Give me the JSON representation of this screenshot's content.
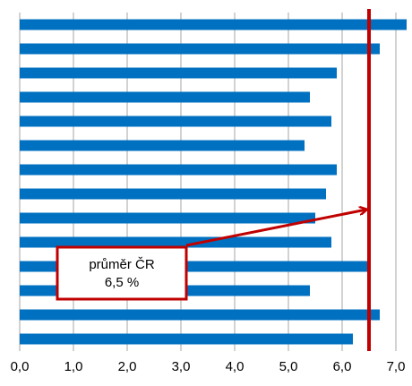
{
  "chart_data": {
    "type": "barh",
    "categories": [
      null,
      null,
      null,
      null,
      null,
      null,
      null,
      null,
      null,
      null,
      null,
      null,
      null,
      null
    ],
    "values": [
      7.2,
      6.7,
      5.9,
      5.4,
      5.8,
      5.3,
      5.9,
      5.7,
      5.5,
      5.8,
      6.5,
      5.4,
      6.7,
      6.2
    ],
    "color": "#0070c0",
    "xlim": [
      0,
      7.2
    ],
    "xticks": [
      {
        "value": 0,
        "label": "0,0"
      },
      {
        "value": 1,
        "label": "1,0"
      },
      {
        "value": 2,
        "label": "2,0"
      },
      {
        "value": 3,
        "label": "3,0"
      },
      {
        "value": 4,
        "label": "4,0"
      },
      {
        "value": 5,
        "label": "5,0"
      },
      {
        "value": 6,
        "label": "6,0"
      },
      {
        "value": 7,
        "label": "7,0"
      }
    ],
    "grid": true,
    "reference": {
      "value": 6.5,
      "color": "#c00000"
    },
    "annotation": [
      "průměr ČR",
      "6,5 %"
    ]
  }
}
